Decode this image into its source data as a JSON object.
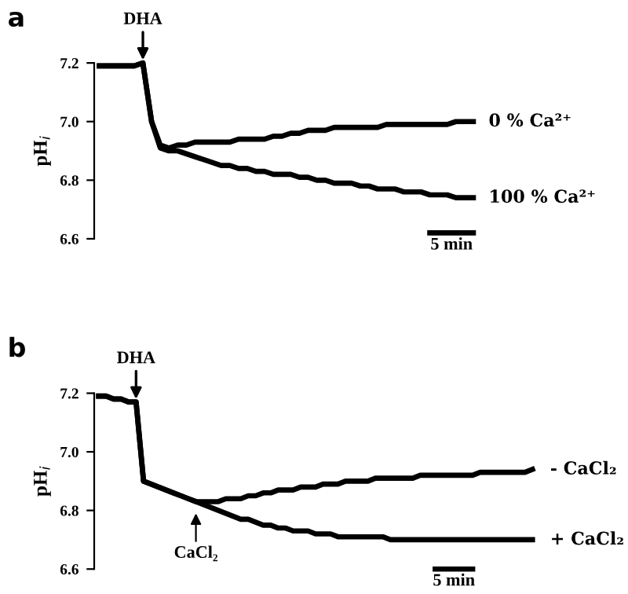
{
  "chart_data": [
    {
      "type": "line",
      "title": "a",
      "ylabel": "pH$_{i}$",
      "ylim": [
        6.6,
        7.2
      ],
      "yticks": [
        6.6,
        6.8,
        {
          "value": 7,
          "label": "7.0"
        },
        7.2
      ],
      "tick_labels": "y",
      "grid": false,
      "categories": [
        null,
        null,
        null,
        null,
        null,
        null,
        null,
        null,
        null,
        null,
        null,
        null,
        null,
        null,
        null,
        null,
        null,
        null,
        null,
        null,
        null,
        null,
        null,
        null,
        null,
        null,
        null,
        null,
        null,
        null,
        null,
        null,
        null,
        null,
        null,
        null,
        null,
        null,
        null,
        null,
        null,
        null,
        null,
        null
      ],
      "annotations": [
        {
          "text": "DHA",
          "y": 7.21
        },
        "5 min"
      ],
      "series": [
        {
          "name": "0 % Ca²⁺",
          "color": "#000000",
          "values": [
            7.19,
            7.19,
            7.19,
            7.19,
            7.19,
            7.2,
            7.0,
            6.92,
            6.91,
            6.92,
            6.92,
            6.93,
            6.93,
            6.93,
            6.93,
            6.93,
            6.94,
            6.94,
            6.94,
            6.94,
            6.95,
            6.95,
            6.96,
            6.96,
            6.97,
            6.97,
            6.97,
            6.98,
            6.98,
            6.98,
            6.98,
            6.98,
            6.98,
            6.99,
            6.99,
            6.99,
            6.99,
            6.99,
            6.99,
            6.99,
            6.99,
            7.0,
            7.0,
            7.0
          ]
        },
        {
          "name": "100 % Ca²⁺",
          "color": "#000000",
          "values": [
            7.19,
            7.19,
            7.19,
            7.19,
            7.19,
            7.2,
            7.0,
            6.91,
            6.9,
            6.9,
            6.89,
            6.88,
            6.87,
            6.86,
            6.85,
            6.85,
            6.84,
            6.84,
            6.83,
            6.83,
            6.82,
            6.82,
            6.82,
            6.81,
            6.81,
            6.8,
            6.8,
            6.79,
            6.79,
            6.79,
            6.78,
            6.78,
            6.77,
            6.77,
            6.77,
            6.76,
            6.76,
            6.76,
            6.75,
            6.75,
            6.75,
            6.74,
            6.74,
            6.74
          ]
        },
        {
          "color": "#000000",
          "values": [
            null,
            null,
            null,
            null,
            null,
            null,
            null,
            null,
            null,
            null,
            null,
            null,
            null,
            null,
            null,
            null,
            null,
            null,
            null,
            null,
            null,
            null,
            null,
            null,
            null,
            null,
            null,
            null,
            null,
            null,
            null,
            null,
            null,
            null,
            null,
            null,
            null,
            null,
            6.62,
            null,
            null,
            null,
            null,
            6.62
          ]
        }
      ]
    },
    {
      "type": "line",
      "title": "b",
      "ylabel": "pH$_{i}$",
      "ylim": [
        6.6,
        7.2
      ],
      "yticks": [
        6.6,
        6.8,
        {
          "value": 7,
          "label": "7.0"
        },
        7.2
      ],
      "tick_labels": "y",
      "grid": false,
      "categories": [
        null,
        null,
        null,
        null,
        null,
        null,
        null,
        null,
        null,
        null,
        null,
        null,
        null,
        null,
        null,
        null,
        null,
        null,
        null,
        null,
        null,
        null,
        null,
        null,
        null,
        null,
        null,
        null,
        null,
        null,
        null,
        null,
        null,
        null,
        null,
        null,
        null,
        null,
        null,
        null,
        null,
        null,
        null,
        null,
        null,
        null,
        null,
        null,
        null,
        null,
        null,
        null,
        null,
        null,
        null,
        null,
        null,
        null,
        null
      ],
      "annotations": [
        {
          "text": "DHA",
          "y": 7.18
        },
        "CaCl₂",
        "5 min"
      ],
      "series": [
        {
          "name": "- CaCl₂",
          "color": "#000000",
          "values": [
            7.19,
            7.19,
            7.18,
            7.18,
            7.17,
            7.17,
            6.9,
            6.89,
            6.88,
            6.87,
            6.86,
            6.85,
            6.84,
            6.83,
            6.83,
            6.83,
            6.83,
            6.84,
            6.84,
            6.84,
            6.85,
            6.85,
            6.86,
            6.86,
            6.87,
            6.87,
            6.87,
            6.88,
            6.88,
            6.88,
            6.89,
            6.89,
            6.89,
            6.9,
            6.9,
            6.9,
            6.9,
            6.91,
            6.91,
            6.91,
            6.91,
            6.91,
            6.91,
            6.92,
            6.92,
            6.92,
            6.92,
            6.92,
            6.92,
            6.92,
            6.92,
            6.93,
            6.93,
            6.93,
            6.93,
            6.93,
            6.93,
            6.93,
            6.94
          ]
        },
        {
          "name": "+ CaCl₂",
          "color": "#000000",
          "values": [
            7.19,
            7.19,
            7.18,
            7.18,
            7.17,
            7.17,
            6.9,
            6.89,
            6.88,
            6.87,
            6.86,
            6.85,
            6.84,
            6.83,
            6.82,
            6.81,
            6.8,
            6.79,
            6.78,
            6.77,
            6.77,
            6.76,
            6.75,
            6.75,
            6.74,
            6.74,
            6.73,
            6.73,
            6.73,
            6.72,
            6.72,
            6.72,
            6.71,
            6.71,
            6.71,
            6.71,
            6.71,
            6.71,
            6.71,
            6.7,
            6.7,
            6.7,
            6.7,
            6.7,
            6.7,
            6.7,
            6.7,
            6.7,
            6.7,
            6.7,
            6.7,
            6.7,
            6.7,
            6.7,
            6.7,
            6.7,
            6.7,
            6.7,
            6.7
          ]
        },
        {
          "color": "#000000",
          "values": [
            null,
            null,
            null,
            null,
            null,
            null,
            null,
            null,
            null,
            null,
            null,
            null,
            null,
            null,
            null,
            null,
            null,
            null,
            null,
            null,
            null,
            null,
            null,
            null,
            null,
            null,
            null,
            null,
            null,
            null,
            null,
            null,
            null,
            null,
            null,
            null,
            null,
            null,
            null,
            null,
            null,
            null,
            null,
            null,
            null,
            6.6,
            null,
            null,
            null,
            null,
            6.6,
            null,
            null,
            null,
            null,
            null,
            null,
            null,
            null
          ]
        }
      ]
    }
  ]
}
